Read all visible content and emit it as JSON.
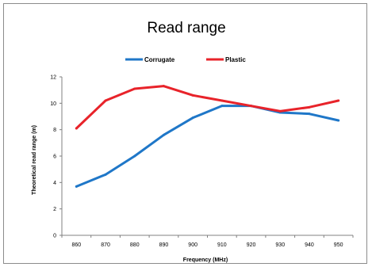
{
  "chart_data": {
    "type": "line",
    "title": "Read range",
    "xlabel": "Frequency (MHz)",
    "ylabel": "Theoretical read range (m)",
    "categories": [
      "860",
      "870",
      "880",
      "890",
      "900",
      "910",
      "920",
      "930",
      "940",
      "950"
    ],
    "yticks": [
      "0",
      "2",
      "4",
      "6",
      "8",
      "10",
      "12"
    ],
    "ylim": [
      0,
      12
    ],
    "grid": false,
    "legend_position": "top",
    "series": [
      {
        "name": "Corrugate",
        "color": "#1f77c8",
        "values": [
          3.7,
          4.6,
          6.0,
          7.6,
          8.9,
          9.8,
          9.8,
          9.3,
          9.2,
          8.7
        ]
      },
      {
        "name": "Plastic",
        "color": "#e8232a",
        "values": [
          8.1,
          10.2,
          11.1,
          11.3,
          10.6,
          10.2,
          9.8,
          9.4,
          9.7,
          10.2
        ]
      }
    ]
  }
}
